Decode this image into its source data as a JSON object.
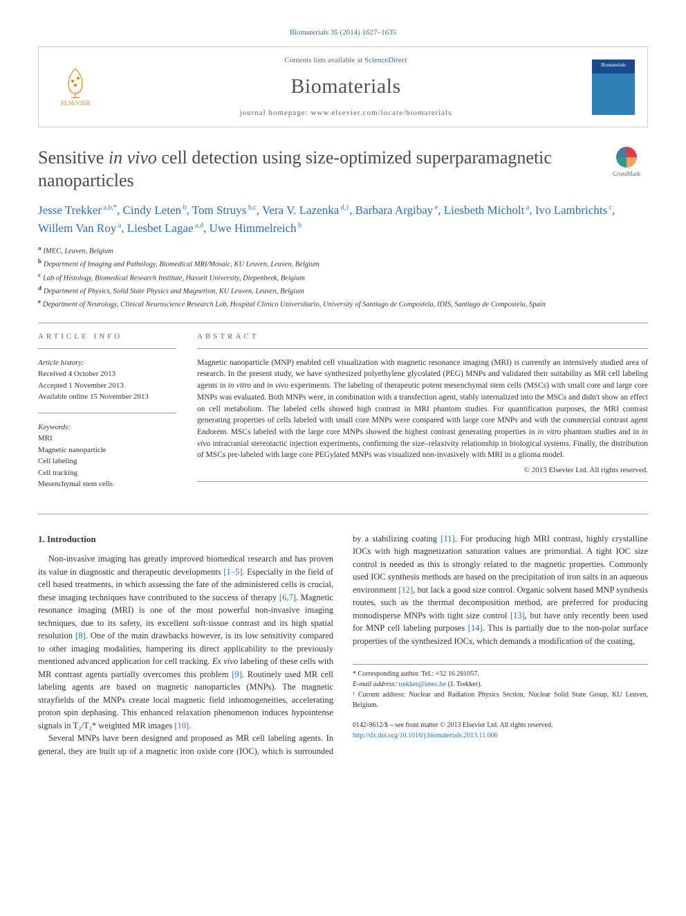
{
  "citation": "Biomaterials 35 (2014) 1627–1635",
  "header": {
    "contents_prefix": "Contents lists available at ",
    "contents_link": "ScienceDirect",
    "journal": "Biomaterials",
    "homepage_prefix": "journal homepage: ",
    "homepage_url": "www.elsevier.com/locate/biomaterials",
    "publisher": "ELSEVIER",
    "cover_label": "Biomaterials"
  },
  "crossmark": "CrossMark",
  "title_pre": "Sensitive ",
  "title_ital": "in vivo",
  "title_post": " cell detection using size-optimized superparamagnetic nanoparticles",
  "authors_html": "Jesse Trekker<sup> a,b,*</sup>, Cindy Leten<sup> b</sup>, Tom Struys<sup> b,c</sup>, Vera V. Lazenka<sup> d,1</sup>, Barbara Argibay<sup> e</sup>, Liesbeth Micholt<sup> a</sup>, Ivo Lambrichts<sup> c</sup>, Willem Van Roy<sup> a</sup>, Liesbet Lagae<sup> a,d</sup>, Uwe Himmelreich<sup> b</sup>",
  "affiliations": [
    {
      "key": "a",
      "text": "IMEC, Leuven, Belgium"
    },
    {
      "key": "b",
      "text": "Department of Imaging and Pathology, Biomedical MRI/Mosaic, KU Leuven, Leuven, Belgium"
    },
    {
      "key": "c",
      "text": "Lab of Histology, Biomedical Research Institute, Hasselt University, Diepenbeek, Belgium"
    },
    {
      "key": "d",
      "text": "Department of Physics, Solid State Physics and Magnetism, KU Leuven, Leuven, Belgium"
    },
    {
      "key": "e",
      "text": "Department of Neurology, Clinical Neuroscience Research Lab, Hospital Clínico Universitario, University of Santiago de Compostela, IDIS, Santiago de Compostela, Spain"
    }
  ],
  "info": {
    "label": "ARTICLE INFO",
    "history_hdr": "Article history:",
    "received": "Received 4 October 2013",
    "accepted": "Accepted 1 November 2013",
    "online": "Available online 15 November 2013",
    "keywords_hdr": "Keywords:",
    "keywords": [
      "MRI",
      "Magnetic nanoparticle",
      "Cell labeling",
      "Cell tracking",
      "Mesenchymal stem cells"
    ]
  },
  "abstract": {
    "label": "ABSTRACT",
    "text": "Magnetic nanoparticle (MNP) enabled cell visualization with magnetic resonance imaging (MRI) is currently an intensively studied area of research. In the present study, we have synthesized polyethylene glycolated (PEG) MNPs and validated their suitability as MR cell labeling agents in in vitro and in vivo experiments. The labeling of therapeutic potent mesenchymal stem cells (MSCs) with small core and large core MNPs was evaluated. Both MNPs were, in combination with a transfection agent, stably internalized into the MSCs and didn't show an effect on cell metabolism. The labeled cells showed high contrast in MRI phantom studies. For quantification purposes, the MRI contrast generating properties of cells labeled with small core MNPs were compared with large core MNPs and with the commercial contrast agent Endorem. MSCs labeled with the large core MNPs showed the highest contrast generating properties in in vitro phantom studies and in in vivo intracranial stereotactic injection experiments, confirming the size–relaxivity relationship in biological systems. Finally, the distribution of MSCs pre-labeled with large core PEGylated MNPs was visualized non-invasively with MRI in a glioma model.",
    "copyright": "© 2013 Elsevier Ltd. All rights reserved."
  },
  "body": {
    "heading": "1. Introduction",
    "p1a": "Non-invasive imaging has greatly improved biomedical research and has proven its value in diagnostic and therapeutic developments ",
    "r1": "[1–5]",
    "p1b": ". Especially in the field of cell based treatments, in which assessing the fate of the administered cells is crucial, these imaging techniques have contributed to the success of therapy ",
    "r2": "[6,7]",
    "p1c": ". Magnetic resonance imaging (MRI) is one of the most powerful non-invasive imaging techniques, due to its safety, its excellent soft-tissue contrast and its high spatial resolution ",
    "r3": "[8]",
    "p1d": ". One of the main drawbacks however, is its low sensitivity compared to other imaging modalities, hampering its direct applicability to the previously mentioned advanced application for cell tracking. ",
    "p1d_ital": "Ex vivo",
    "p1e": " labeling of these cells with MR contrast agents partially overcomes this problem ",
    "r4": "[9]",
    "p1f": ". Routinely used MR cell labeling agents are based on magnetic nanoparticles (MNPs). The magnetic strayfields of the MNPs create local magnetic field inhomogeneities, accelerating proton spin dephasing. This enhanced relaxation phenomenon induces hypointense signals in T₂/T₂* weighted MR images ",
    "r5": "[10]",
    "p1g": ".",
    "p2a": "Several MNPs have been designed and proposed as MR cell labeling agents. In general, they are built up of a magnetic iron oxide core (IOC), which is surrounded by a stabilizing coating ",
    "r6": "[11]",
    "p2b": ". For producing high MRI contrast, highly crystalline IOCs with high magnetization saturation values are primordial. A tight IOC size control is needed as this is strongly related to the magnetic properties. Commonly used IOC synthesis methods are based on the precipitation of iron salts in an aqueous environment ",
    "r7": "[12]",
    "p2c": ", but lack a good size control. Organic solvent based MNP synthesis routes, such as the thermal decomposition method, are preferred for producing monodisperse MNPs with tight size control ",
    "r8": "[13]",
    "p2d": ", but have only recently been used for MNP cell labeling purposes ",
    "r9": "[14]",
    "p2e": ". This is partially due to the non-polar surface properties of the synthesized IOCs, which demands a modification of the coating,"
  },
  "footnotes": {
    "corr": "* Corresponding author. Tel.: +32 16 281057.",
    "email_label": "E-mail address: ",
    "email": "trekker@imec.be",
    "email_who": " (J. Trekker).",
    "note1": "¹ Current address: Nuclear and Radiation Physics Section, Nuclear Solid State Group, KU Leuven, Belgium."
  },
  "footer": {
    "issn": "0142-9612/$ – see front matter © 2013 Elsevier Ltd. All rights reserved.",
    "doi": "http://dx.doi.org/10.1016/j.biomaterials.2013.11.006"
  },
  "colors": {
    "link": "#2a6ebb",
    "text": "#333333",
    "border": "#cccccc"
  }
}
